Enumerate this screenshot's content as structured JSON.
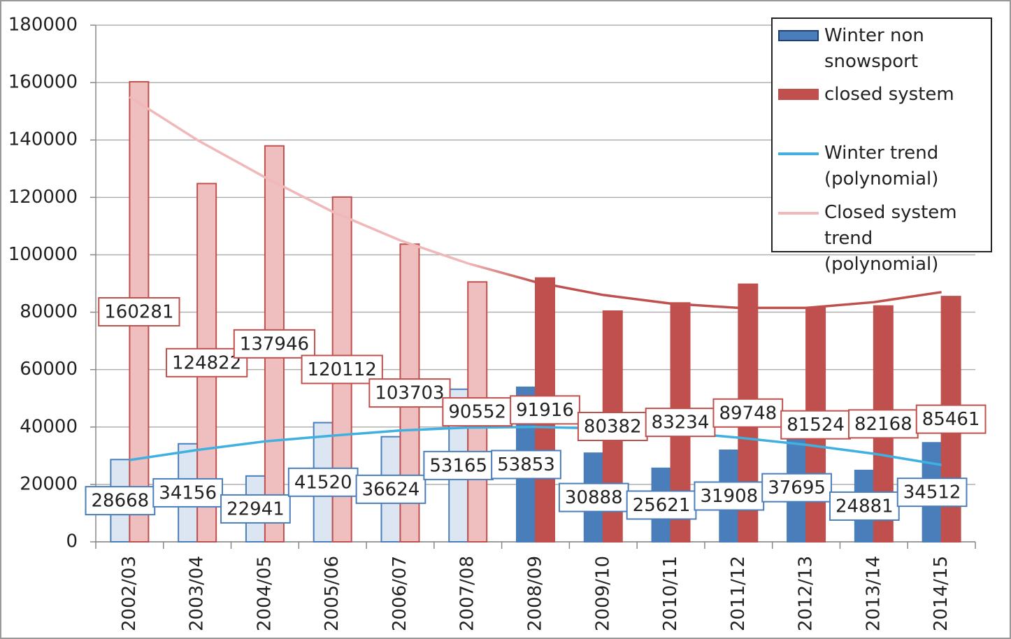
{
  "chart_data": {
    "type": "bar",
    "categories": [
      "2002/03",
      "2003/04",
      "2004/05",
      "2005/06",
      "2006/07",
      "2007/08",
      "2008/09",
      "2009/10",
      "2010/11",
      "2011/12",
      "2012/13",
      "2013/14",
      "2014/15"
    ],
    "series": [
      {
        "name": "Winter non snowsport",
        "type": "bar",
        "color": "#4a7ebb",
        "colors": [
          "#dce6f2",
          "#dce6f2",
          "#dce6f2",
          "#dce6f2",
          "#dce6f2",
          "#dce6f2",
          "#4a7ebb",
          "#4a7ebb",
          "#4a7ebb",
          "#4a7ebb",
          "#4a7ebb",
          "#4a7ebb",
          "#4a7ebb"
        ],
        "values": [
          28668,
          34156,
          22941,
          41520,
          36624,
          53165,
          53853,
          30888,
          25621,
          31908,
          37695,
          24881,
          34512
        ]
      },
      {
        "name": "closed system",
        "type": "bar",
        "color": "#c0504d",
        "colors": [
          "#efbfbf",
          "#efbfbf",
          "#efbfbf",
          "#efbfbf",
          "#efbfbf",
          "#efbfbf",
          "#c0504d",
          "#c0504d",
          "#c0504d",
          "#c0504d",
          "#c0504d",
          "#c0504d",
          "#c0504d"
        ],
        "values": [
          160281,
          124822,
          137946,
          120112,
          103703,
          90552,
          91916,
          80382,
          83234,
          89748,
          81524,
          82168,
          85461
        ]
      },
      {
        "name": "Winter trend (polynomial)",
        "type": "line",
        "color": "#3fb0e0",
        "values": [
          28500,
          32000,
          35000,
          37000,
          38800,
          39800,
          40000,
          39500,
          38300,
          36300,
          33800,
          30700,
          26800
        ]
      },
      {
        "name": "Closed system trend (polynomial)",
        "type": "line",
        "color": "#f0b8b8",
        "colors": [
          "#f0b8b8",
          "#f0b8b8",
          "#f0b8b8",
          "#f0b8b8",
          "#f0b8b8",
          "#f0b8b8",
          "#c0504d",
          "#c0504d",
          "#c0504d",
          "#c0504d",
          "#c0504d",
          "#c0504d",
          "#c0504d"
        ],
        "values": [
          155000,
          140000,
          127000,
          115000,
          105000,
          97000,
          90500,
          86000,
          83000,
          81500,
          81500,
          83500,
          87000
        ]
      }
    ],
    "ylim": [
      0,
      180000
    ],
    "yticks": [
      0,
      20000,
      40000,
      60000,
      80000,
      100000,
      120000,
      140000,
      160000,
      180000
    ],
    "grid": true,
    "legend": "top-right"
  }
}
